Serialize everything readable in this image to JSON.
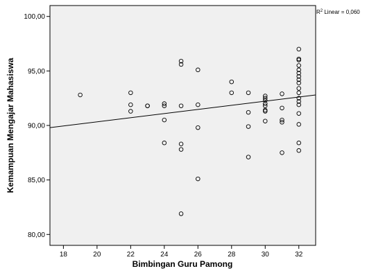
{
  "chart_data": {
    "type": "scatter",
    "xlabel": "Bimbingan Guru Pamong",
    "ylabel": "Kemampuan Mengajar Mahasiswa",
    "xlim": [
      17.2,
      33
    ],
    "ylim": [
      79,
      101
    ],
    "x_ticks": [
      "18",
      "20",
      "22",
      "24",
      "26",
      "28",
      "30",
      "32"
    ],
    "y_ticks": [
      "80,00",
      "85,00",
      "90,00",
      "95,00",
      "100,00"
    ],
    "annotation": {
      "prefix": "R",
      "superscript": "2",
      "text": " Linear = 0,060"
    },
    "fit_line": {
      "x": [
        17.2,
        33
      ],
      "y": [
        89.8,
        92.8
      ]
    },
    "grid": false,
    "point_style": "open-circle",
    "background_color": "#f0f0f0",
    "points": [
      {
        "x": 19,
        "y": 92.8
      },
      {
        "x": 22,
        "y": 93.0
      },
      {
        "x": 22,
        "y": 91.9
      },
      {
        "x": 22,
        "y": 91.3
      },
      {
        "x": 23,
        "y": 91.8
      },
      {
        "x": 23,
        "y": 91.8
      },
      {
        "x": 24,
        "y": 92.0
      },
      {
        "x": 24,
        "y": 91.8
      },
      {
        "x": 24,
        "y": 90.5
      },
      {
        "x": 24,
        "y": 88.4
      },
      {
        "x": 25,
        "y": 95.9
      },
      {
        "x": 25,
        "y": 95.6
      },
      {
        "x": 25,
        "y": 91.8
      },
      {
        "x": 25,
        "y": 88.3
      },
      {
        "x": 25,
        "y": 87.8
      },
      {
        "x": 25,
        "y": 81.9
      },
      {
        "x": 26,
        "y": 95.1
      },
      {
        "x": 26,
        "y": 91.9
      },
      {
        "x": 26,
        "y": 89.8
      },
      {
        "x": 26,
        "y": 85.1
      },
      {
        "x": 28,
        "y": 94.0
      },
      {
        "x": 28,
        "y": 93.0
      },
      {
        "x": 29,
        "y": 93.0
      },
      {
        "x": 29,
        "y": 91.2
      },
      {
        "x": 29,
        "y": 89.9
      },
      {
        "x": 29,
        "y": 87.1
      },
      {
        "x": 30,
        "y": 92.7
      },
      {
        "x": 30,
        "y": 92.5
      },
      {
        "x": 30,
        "y": 92.3
      },
      {
        "x": 30,
        "y": 92.0
      },
      {
        "x": 30,
        "y": 91.8
      },
      {
        "x": 30,
        "y": 91.4
      },
      {
        "x": 30,
        "y": 91.3
      },
      {
        "x": 30,
        "y": 90.4
      },
      {
        "x": 31,
        "y": 92.9
      },
      {
        "x": 31,
        "y": 91.6
      },
      {
        "x": 31,
        "y": 90.5
      },
      {
        "x": 31,
        "y": 90.3
      },
      {
        "x": 31,
        "y": 87.5
      },
      {
        "x": 32,
        "y": 97.0
      },
      {
        "x": 32,
        "y": 96.1
      },
      {
        "x": 32,
        "y": 96.0
      },
      {
        "x": 32,
        "y": 95.5
      },
      {
        "x": 32,
        "y": 95.1
      },
      {
        "x": 32,
        "y": 94.8
      },
      {
        "x": 32,
        "y": 94.5
      },
      {
        "x": 32,
        "y": 94.2
      },
      {
        "x": 32,
        "y": 93.9
      },
      {
        "x": 32,
        "y": 93.4
      },
      {
        "x": 32,
        "y": 93.0
      },
      {
        "x": 32,
        "y": 92.5
      },
      {
        "x": 32,
        "y": 92.2
      },
      {
        "x": 32,
        "y": 91.9
      },
      {
        "x": 32,
        "y": 91.1
      },
      {
        "x": 32,
        "y": 90.1
      },
      {
        "x": 32,
        "y": 88.4
      },
      {
        "x": 32,
        "y": 87.7
      }
    ]
  }
}
